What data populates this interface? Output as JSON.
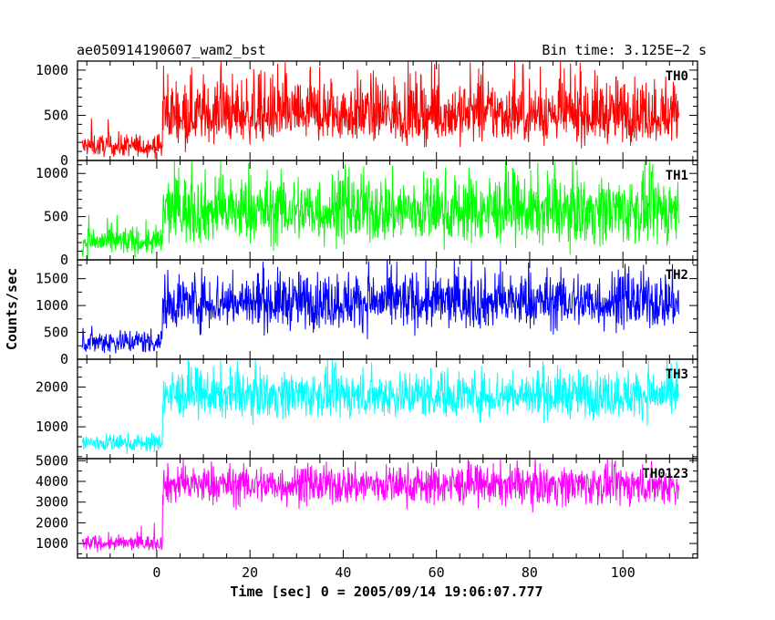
{
  "chart_data": {
    "type": "line",
    "title": "ae050914190607_wam2_bst",
    "bin_time_label": "Bin time: 3.125E−2 s",
    "xlabel": "Time [sec] 0 = 2005/09/14 19:06:07.777",
    "ylabel": "Counts/sec",
    "xlim": [
      -17,
      116
    ],
    "x_ticks": [
      0,
      20,
      40,
      60,
      80,
      100
    ],
    "x_tick_labels": [
      "0",
      "20",
      "40",
      "60",
      "80",
      "100"
    ],
    "grid": false,
    "series": [
      {
        "name": "TH0",
        "color": "#ff0000",
        "ylim": [
          0,
          1100
        ],
        "y_ticks": [
          0,
          500,
          1000
        ],
        "y_tick_labels": [
          "0",
          "500",
          "1000"
        ],
        "x_range": [
          -16,
          112
        ],
        "segments": [
          {
            "x_start": -16,
            "x_end": 1.2,
            "mean": 150,
            "low": 10,
            "high": 350,
            "peak": 500
          },
          {
            "x_start": 1.2,
            "x_end": 112,
            "mean": 490,
            "low": 110,
            "high": 1100,
            "peak": 1100
          }
        ]
      },
      {
        "name": "TH1",
        "color": "#00ff00",
        "ylim": [
          0,
          1150
        ],
        "y_ticks": [
          0,
          500,
          1000
        ],
        "y_tick_labels": [
          "0",
          "500",
          "1000"
        ],
        "x_range": [
          -16,
          112
        ],
        "segments": [
          {
            "x_start": -16,
            "x_end": 1.2,
            "mean": 200,
            "low": 15,
            "high": 460,
            "peak": 530
          },
          {
            "x_start": 1.2,
            "x_end": 112,
            "mean": 560,
            "low": 60,
            "high": 1150,
            "peak": 1150
          }
        ]
      },
      {
        "name": "TH2",
        "color": "#0000ff",
        "ylim": [
          0,
          1850
        ],
        "y_ticks": [
          0,
          500,
          1000,
          1500
        ],
        "y_tick_labels": [
          "0",
          "500",
          "1000",
          "1500"
        ],
        "x_range": [
          -16,
          112
        ],
        "segments": [
          {
            "x_start": -16,
            "x_end": 1.2,
            "mean": 330,
            "low": 30,
            "high": 650,
            "peak": 750
          },
          {
            "x_start": 1.2,
            "x_end": 112,
            "mean": 1050,
            "low": 400,
            "high": 1850,
            "peak": 1850
          }
        ]
      },
      {
        "name": "TH3",
        "color": "#00ffff",
        "ylim": [
          200,
          2700
        ],
        "y_ticks": [
          1000,
          2000
        ],
        "y_tick_labels": [
          "1000",
          "2000"
        ],
        "x_range": [
          -16,
          112
        ],
        "segments": [
          {
            "x_start": -16,
            "x_end": 1.2,
            "mean": 600,
            "low": 280,
            "high": 900,
            "peak": 1000
          },
          {
            "x_start": 1.2,
            "x_end": 112,
            "mean": 1780,
            "low": 1050,
            "high": 2700,
            "peak": 2700
          }
        ]
      },
      {
        "name": "TH0123",
        "color": "#ff00ff",
        "ylim": [
          300,
          5100
        ],
        "y_ticks": [
          1000,
          2000,
          3000,
          4000,
          5000
        ],
        "y_tick_labels": [
          "1000",
          "2000",
          "3000",
          "4000",
          "5000"
        ],
        "x_range": [
          -16,
          112
        ],
        "segments": [
          {
            "x_start": -16,
            "x_end": 1.2,
            "mean": 1000,
            "low": 550,
            "high": 1550,
            "peak": 2000
          },
          {
            "x_start": 1.2,
            "x_end": 112,
            "mean": 3850,
            "low": 2500,
            "high": 5100,
            "peak": 5100
          }
        ]
      }
    ]
  }
}
